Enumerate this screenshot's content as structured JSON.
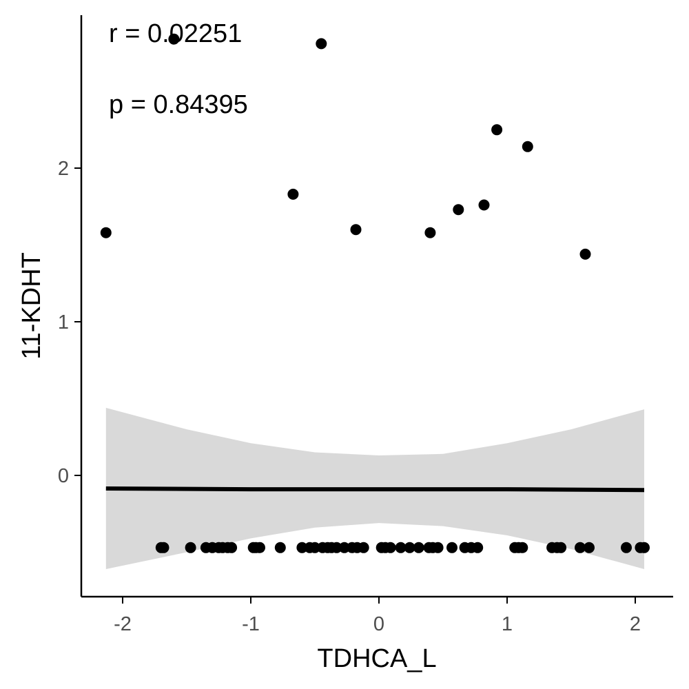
{
  "chart_data": {
    "type": "scatter",
    "title": "",
    "xlabel": "TDHCA_L",
    "ylabel": "11-KDHT",
    "xlim": [
      -2.35,
      2.3
    ],
    "ylim": [
      -0.78,
      3.0
    ],
    "x_ticks": [
      -2,
      -1,
      0,
      1,
      2
    ],
    "x_tick_labels": [
      "-2",
      "-1",
      "0",
      "1",
      "2"
    ],
    "y_ticks": [
      0,
      1,
      2
    ],
    "y_tick_labels": [
      "0",
      "1",
      "2"
    ],
    "grid": false,
    "legend": "none",
    "annotations": [
      "r = 0.02251",
      "p = 0.84395"
    ],
    "points": [
      {
        "x": -2.13,
        "y": 1.58
      },
      {
        "x": -1.6,
        "y": 2.84
      },
      {
        "x": -0.45,
        "y": 2.81
      },
      {
        "x": -0.67,
        "y": 1.83
      },
      {
        "x": -0.18,
        "y": 1.6
      },
      {
        "x": 0.4,
        "y": 1.58
      },
      {
        "x": 0.62,
        "y": 1.73
      },
      {
        "x": 0.82,
        "y": 1.76
      },
      {
        "x": 0.92,
        "y": 2.25
      },
      {
        "x": 1.16,
        "y": 2.14
      },
      {
        "x": 1.61,
        "y": 1.44
      },
      {
        "x": -1.7,
        "y": -0.47
      },
      {
        "x": -1.68,
        "y": -0.47
      },
      {
        "x": -1.47,
        "y": -0.47
      },
      {
        "x": -1.35,
        "y": -0.47
      },
      {
        "x": -1.3,
        "y": -0.47
      },
      {
        "x": -1.25,
        "y": -0.47
      },
      {
        "x": -1.22,
        "y": -0.47
      },
      {
        "x": -1.18,
        "y": -0.47
      },
      {
        "x": -1.15,
        "y": -0.47
      },
      {
        "x": -0.98,
        "y": -0.47
      },
      {
        "x": -0.96,
        "y": -0.47
      },
      {
        "x": -0.93,
        "y": -0.47
      },
      {
        "x": -0.77,
        "y": -0.47
      },
      {
        "x": -0.6,
        "y": -0.47
      },
      {
        "x": -0.54,
        "y": -0.47
      },
      {
        "x": -0.5,
        "y": -0.47
      },
      {
        "x": -0.44,
        "y": -0.47
      },
      {
        "x": -0.4,
        "y": -0.47
      },
      {
        "x": -0.37,
        "y": -0.47
      },
      {
        "x": -0.33,
        "y": -0.47
      },
      {
        "x": -0.27,
        "y": -0.47
      },
      {
        "x": -0.21,
        "y": -0.47
      },
      {
        "x": -0.17,
        "y": -0.47
      },
      {
        "x": -0.12,
        "y": -0.47
      },
      {
        "x": 0.02,
        "y": -0.47
      },
      {
        "x": 0.05,
        "y": -0.47
      },
      {
        "x": 0.09,
        "y": -0.47
      },
      {
        "x": 0.17,
        "y": -0.47
      },
      {
        "x": 0.24,
        "y": -0.47
      },
      {
        "x": 0.31,
        "y": -0.47
      },
      {
        "x": 0.39,
        "y": -0.47
      },
      {
        "x": 0.42,
        "y": -0.47
      },
      {
        "x": 0.46,
        "y": -0.47
      },
      {
        "x": 0.57,
        "y": -0.47
      },
      {
        "x": 0.67,
        "y": -0.47
      },
      {
        "x": 0.72,
        "y": -0.47
      },
      {
        "x": 0.77,
        "y": -0.47
      },
      {
        "x": 1.06,
        "y": -0.47
      },
      {
        "x": 1.09,
        "y": -0.47
      },
      {
        "x": 1.12,
        "y": -0.47
      },
      {
        "x": 1.35,
        "y": -0.47
      },
      {
        "x": 1.39,
        "y": -0.47
      },
      {
        "x": 1.42,
        "y": -0.47
      },
      {
        "x": 1.57,
        "y": -0.47
      },
      {
        "x": 1.64,
        "y": -0.47
      },
      {
        "x": 1.93,
        "y": -0.47
      },
      {
        "x": 2.04,
        "y": -0.47
      },
      {
        "x": 2.07,
        "y": -0.47
      }
    ],
    "fit_line": {
      "x": [
        -2.13,
        -1.0,
        0.0,
        1.0,
        2.07
      ],
      "y": [
        -0.085,
        -0.09,
        -0.09,
        -0.09,
        -0.095
      ]
    },
    "confidence_band": {
      "x": [
        -2.13,
        -1.5,
        -1.0,
        -0.5,
        0.0,
        0.5,
        1.0,
        1.5,
        2.07
      ],
      "lower": [
        -0.61,
        -0.5,
        -0.41,
        -0.34,
        -0.31,
        -0.33,
        -0.39,
        -0.48,
        -0.61
      ],
      "upper": [
        0.44,
        0.3,
        0.21,
        0.15,
        0.13,
        0.14,
        0.21,
        0.3,
        0.43
      ]
    },
    "colors": {
      "points": "#000000",
      "band": "#d9d9d9",
      "line": "#000000",
      "axis": "#000000",
      "tick_text": "#4d4d4d"
    }
  }
}
